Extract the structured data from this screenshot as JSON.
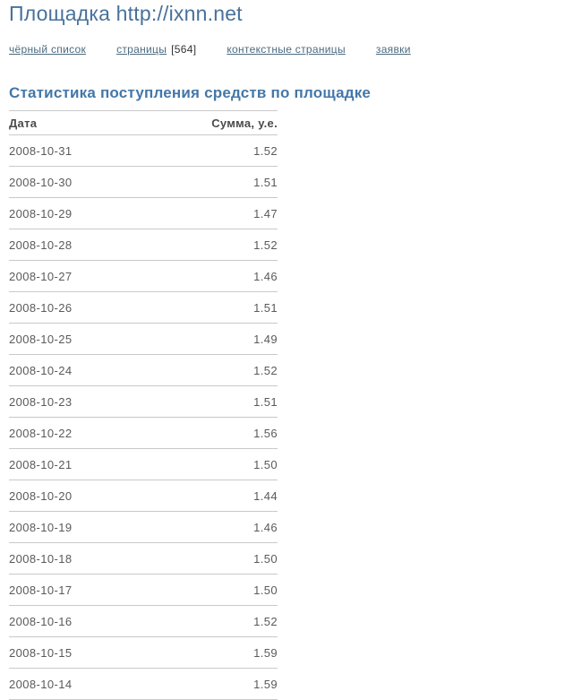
{
  "page": {
    "title": "Площадка http://ixnn.net"
  },
  "nav": {
    "items": [
      {
        "label": "чёрный список"
      },
      {
        "label": "страницы",
        "count_suffix": "[564]"
      },
      {
        "label": "контекстные страницы"
      },
      {
        "label": "заявки"
      }
    ]
  },
  "stats": {
    "heading": "Статистика поступления средств по площадке",
    "table": {
      "columns": [
        "Дата",
        "Сумма, у.е."
      ],
      "rows": [
        {
          "date": "2008-10-31",
          "sum": "1.52"
        },
        {
          "date": "2008-10-30",
          "sum": "1.51"
        },
        {
          "date": "2008-10-29",
          "sum": "1.47"
        },
        {
          "date": "2008-10-28",
          "sum": "1.52"
        },
        {
          "date": "2008-10-27",
          "sum": "1.46"
        },
        {
          "date": "2008-10-26",
          "sum": "1.51"
        },
        {
          "date": "2008-10-25",
          "sum": "1.49"
        },
        {
          "date": "2008-10-24",
          "sum": "1.52"
        },
        {
          "date": "2008-10-23",
          "sum": "1.51"
        },
        {
          "date": "2008-10-22",
          "sum": "1.56"
        },
        {
          "date": "2008-10-21",
          "sum": "1.50"
        },
        {
          "date": "2008-10-20",
          "sum": "1.44"
        },
        {
          "date": "2008-10-19",
          "sum": "1.46"
        },
        {
          "date": "2008-10-18",
          "sum": "1.50"
        },
        {
          "date": "2008-10-17",
          "sum": "1.50"
        },
        {
          "date": "2008-10-16",
          "sum": "1.52"
        },
        {
          "date": "2008-10-15",
          "sum": "1.59"
        },
        {
          "date": "2008-10-14",
          "sum": "1.59"
        }
      ]
    }
  },
  "colors": {
    "title_blue": "#48719B",
    "heading_blue": "#4377A8",
    "link_blue_gray": "#4C6B80",
    "table_line_gray": "#C9C9C9",
    "row_text_gray": "#5A5A5A"
  }
}
